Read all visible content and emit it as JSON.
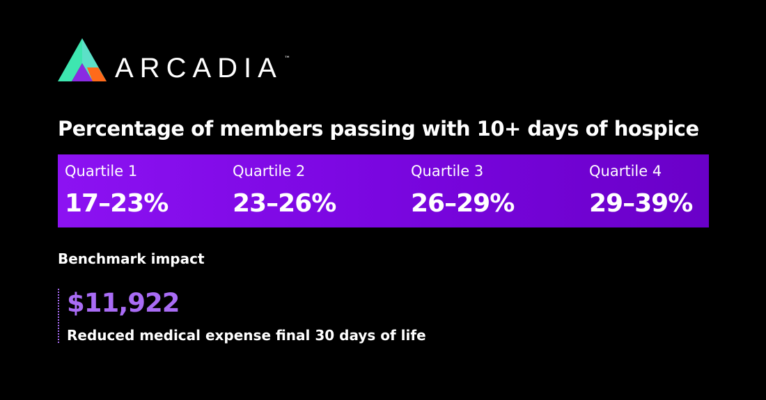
{
  "logo": {
    "name": "ARCADIA",
    "mark": "™"
  },
  "title": "Percentage of members passing with 10+ days of hospice",
  "quartiles": [
    {
      "label": "Quartile 1",
      "range": "17–23%"
    },
    {
      "label": "Quartile 2",
      "range": "23–26%"
    },
    {
      "label": "Quartile 3",
      "range": "26–29%"
    },
    {
      "label": "Quartile 4",
      "range": "29–39%"
    }
  ],
  "benchmark": {
    "heading": "Benchmark impact",
    "value": "$11,922",
    "description": "Reduced medical expense final 30 days of life"
  }
}
